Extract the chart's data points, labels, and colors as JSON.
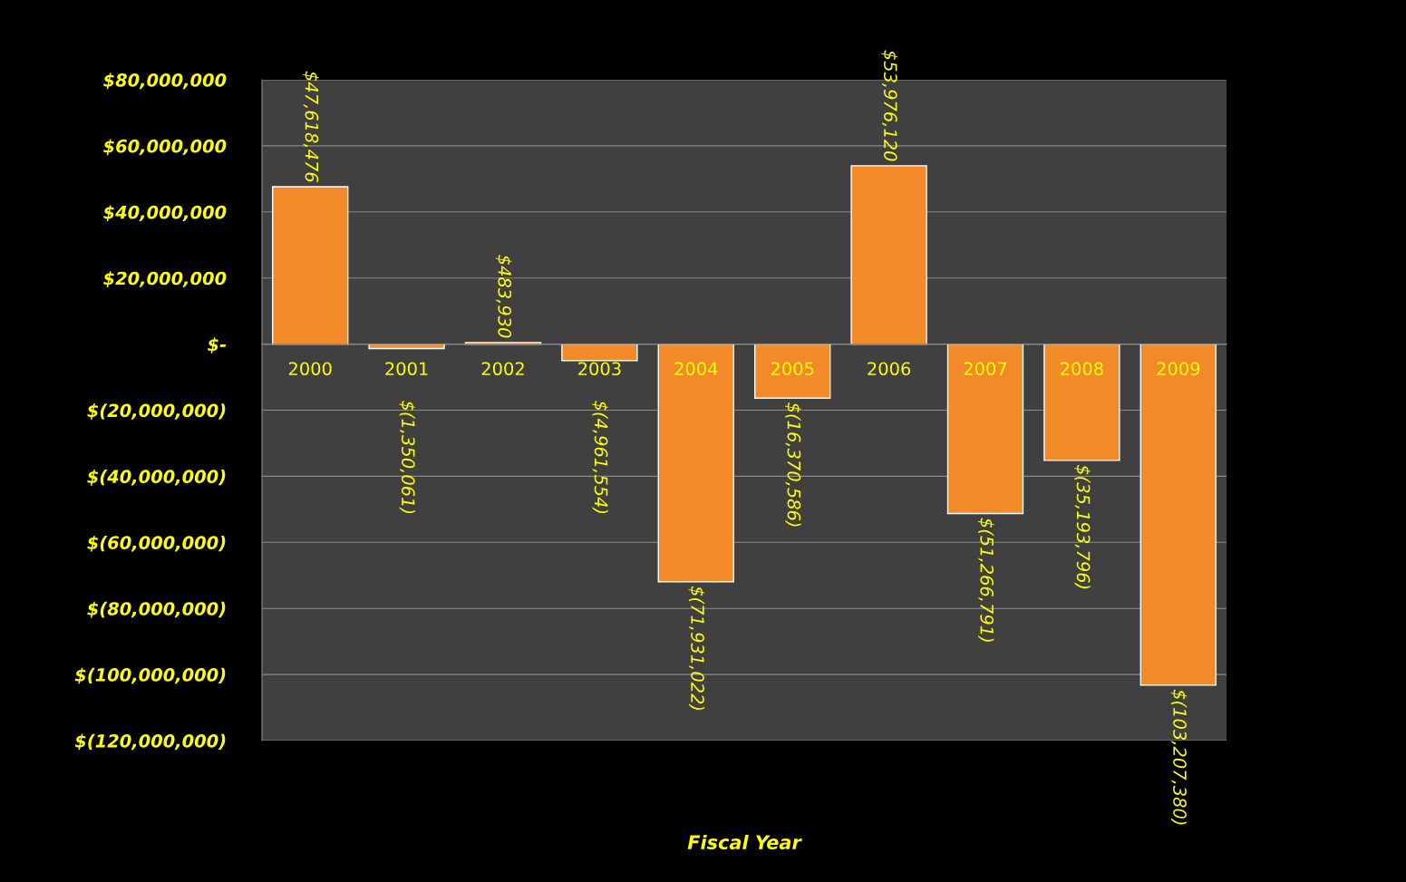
{
  "chart_data": {
    "type": "bar",
    "xlabel": "Fiscal Year",
    "categories": [
      "2000",
      "2001",
      "2002",
      "2003",
      "2004",
      "2005",
      "2006",
      "2007",
      "2008",
      "2009"
    ],
    "values": [
      47618476,
      -1350061,
      483930,
      -4961554,
      -71931022,
      -16370586,
      53976120,
      -51266791,
      -35193796,
      -103207380
    ],
    "value_labels": [
      "$47,618,476",
      "$(1,350,061)",
      "$483,930",
      "$(4,961,554)",
      "$(71,931,022)",
      "$(16,370,586)",
      "$53,976,120",
      "$(51,266,791)",
      "$(35,193,796)",
      "$(103,207,380)"
    ],
    "color": "#f28a2a",
    "ylim": [
      -120000000,
      80000000
    ],
    "yticks": [
      {
        "value": 80000000,
        "label": "$80,000,000"
      },
      {
        "value": 60000000,
        "label": "$60,000,000"
      },
      {
        "value": 40000000,
        "label": "$40,000,000"
      },
      {
        "value": 20000000,
        "label": "$20,000,000"
      },
      {
        "value": 0,
        "label": "$-"
      },
      {
        "value": -20000000,
        "label": "$(20,000,000)"
      },
      {
        "value": -40000000,
        "label": "$(40,000,000)"
      },
      {
        "value": -60000000,
        "label": "$(60,000,000)"
      },
      {
        "value": -80000000,
        "label": "$(80,000,000)"
      },
      {
        "value": -100000000,
        "label": "$(100,000,000)"
      },
      {
        "value": -120000000,
        "label": "$(120,000,000)"
      }
    ],
    "grid": "y",
    "legend": false
  }
}
